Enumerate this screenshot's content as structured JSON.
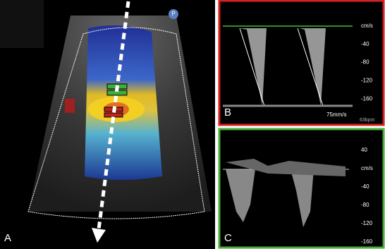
{
  "panels": {
    "main": {
      "label": "A",
      "marker": "P"
    },
    "b": {
      "label": "B",
      "scale": [
        "cm/s",
        "-40",
        "-80",
        "-120",
        "-160"
      ],
      "sweep": "75mm/s",
      "rate": "63bpm"
    },
    "c": {
      "label": "C",
      "scale": [
        "40",
        "cm/s",
        "-40",
        "-80",
        "-120",
        "-160"
      ]
    }
  }
}
